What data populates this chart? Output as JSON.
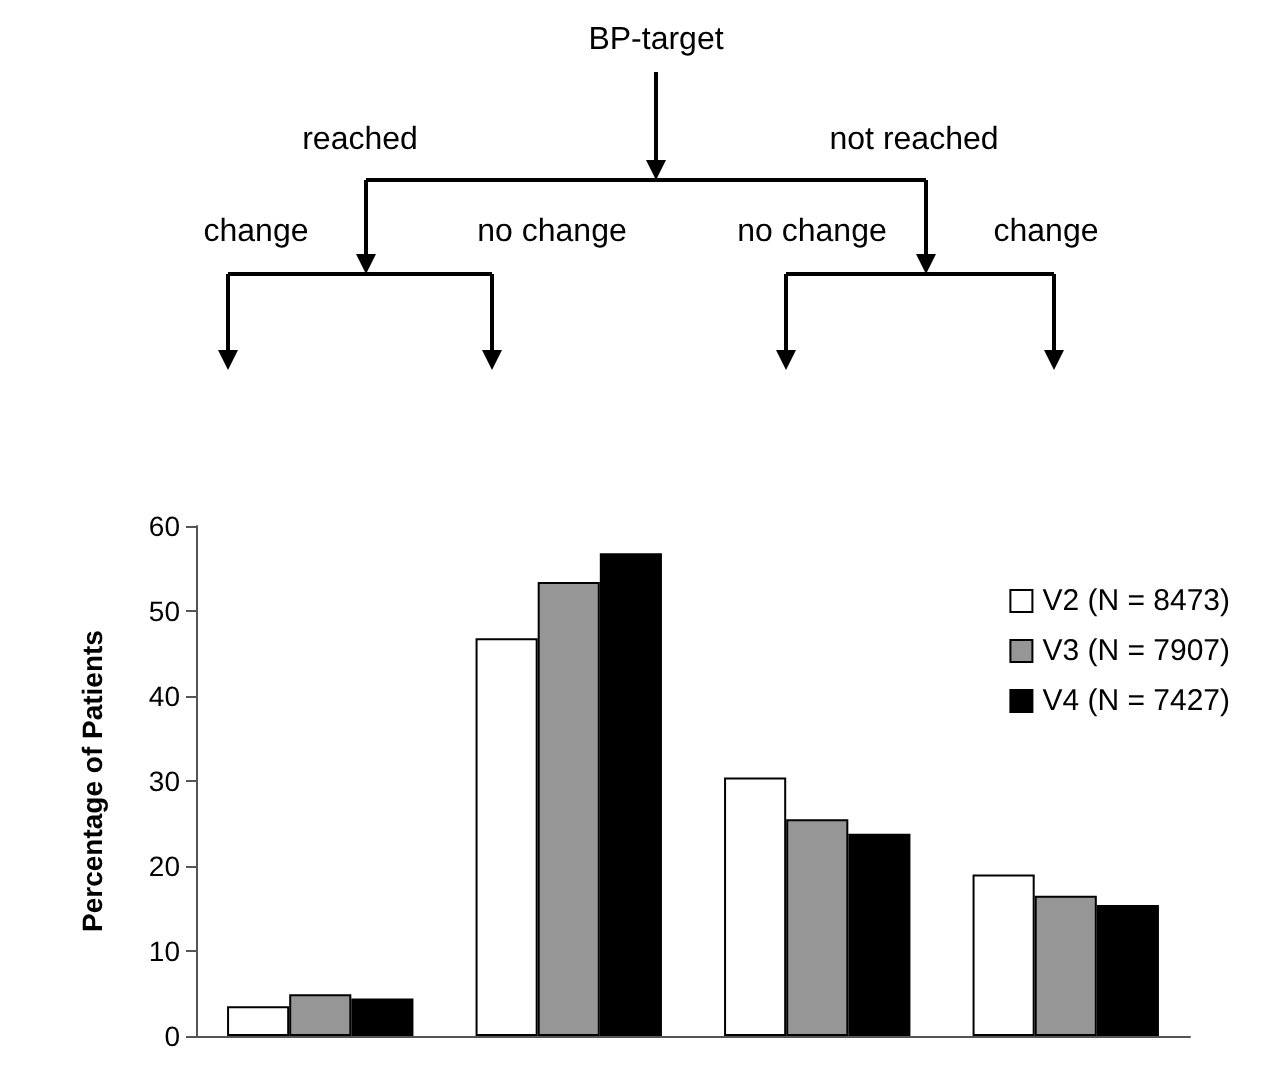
{
  "chart_data": {
    "type": "bar",
    "ylabel": "Percentage of Patients",
    "categories": [
      null,
      null,
      null,
      null
    ],
    "series": [
      {
        "name": "V2 (N = 8473)",
        "color": "#ffffff",
        "values": [
          3.5,
          46.8,
          30.4,
          19.0
        ]
      },
      {
        "name": "V3 (N = 7907)",
        "color": "#969696",
        "values": [
          4.9,
          53.4,
          25.5,
          16.5
        ]
      },
      {
        "name": "V4 (N = 7427)",
        "color": "#000000",
        "values": [
          4.4,
          56.8,
          23.8,
          15.4
        ]
      }
    ],
    "ylim": [
      0,
      60
    ],
    "yticks": [
      0,
      10,
      20,
      30,
      40,
      50,
      60
    ],
    "grid": false,
    "legend": "top right",
    "annotations": [
      "BP-target",
      "reached",
      "not reached",
      "change",
      "no change",
      "no change",
      "change"
    ]
  }
}
